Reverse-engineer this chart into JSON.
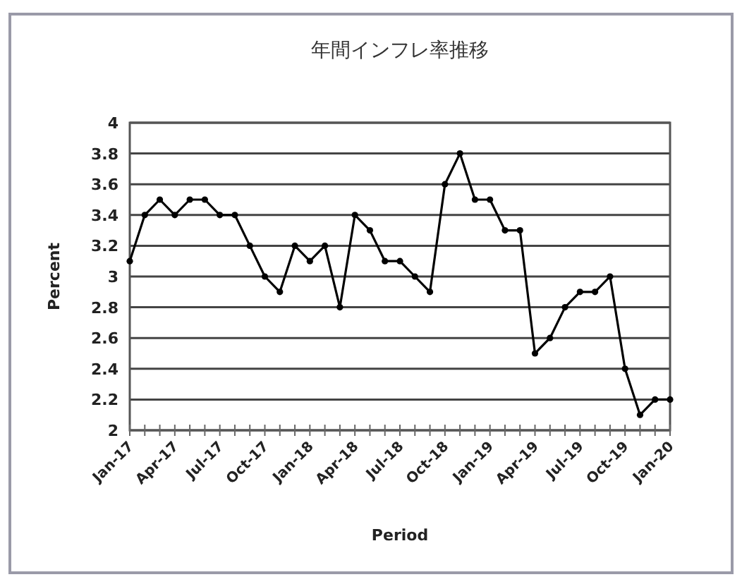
{
  "chart_data": {
    "type": "line",
    "title": "年間インフレ率推移",
    "xlabel": "Period",
    "ylabel": "Percent",
    "categories": [
      "Jan-17",
      null,
      null,
      "Apr-17",
      null,
      null,
      "Jul-17",
      null,
      null,
      "Oct-17",
      null,
      null,
      "Jan-18",
      null,
      null,
      "Apr-18",
      null,
      null,
      "Jul-18",
      null,
      null,
      "Oct-18",
      null,
      null,
      "Jan-19",
      null,
      null,
      "Apr-19",
      null,
      null,
      "Jul-19",
      null,
      null,
      "Oct-19",
      null,
      null,
      "Jan-20"
    ],
    "series": [
      {
        "color": "#000000",
        "values": [
          3.1,
          3.4,
          3.5,
          3.4,
          3.5,
          3.5,
          3.4,
          3.4,
          3.2,
          3.0,
          2.9,
          3.2,
          3.1,
          3.2,
          2.8,
          3.4,
          3.3,
          3.1,
          3.1,
          3.0,
          2.9,
          3.6,
          3.8,
          3.5,
          3.5,
          3.3,
          3.3,
          2.5,
          2.6,
          2.8,
          2.9,
          2.9,
          3.0,
          2.4,
          2.1,
          2.2,
          2.2
        ]
      }
    ],
    "ylim": [
      2,
      4
    ],
    "yticks": [
      2,
      2.2,
      2.4,
      2.6,
      2.8,
      3,
      3.2,
      3.4,
      3.6,
      3.8,
      4
    ],
    "grid": "y",
    "marker": "circle",
    "line_style": "solid"
  }
}
